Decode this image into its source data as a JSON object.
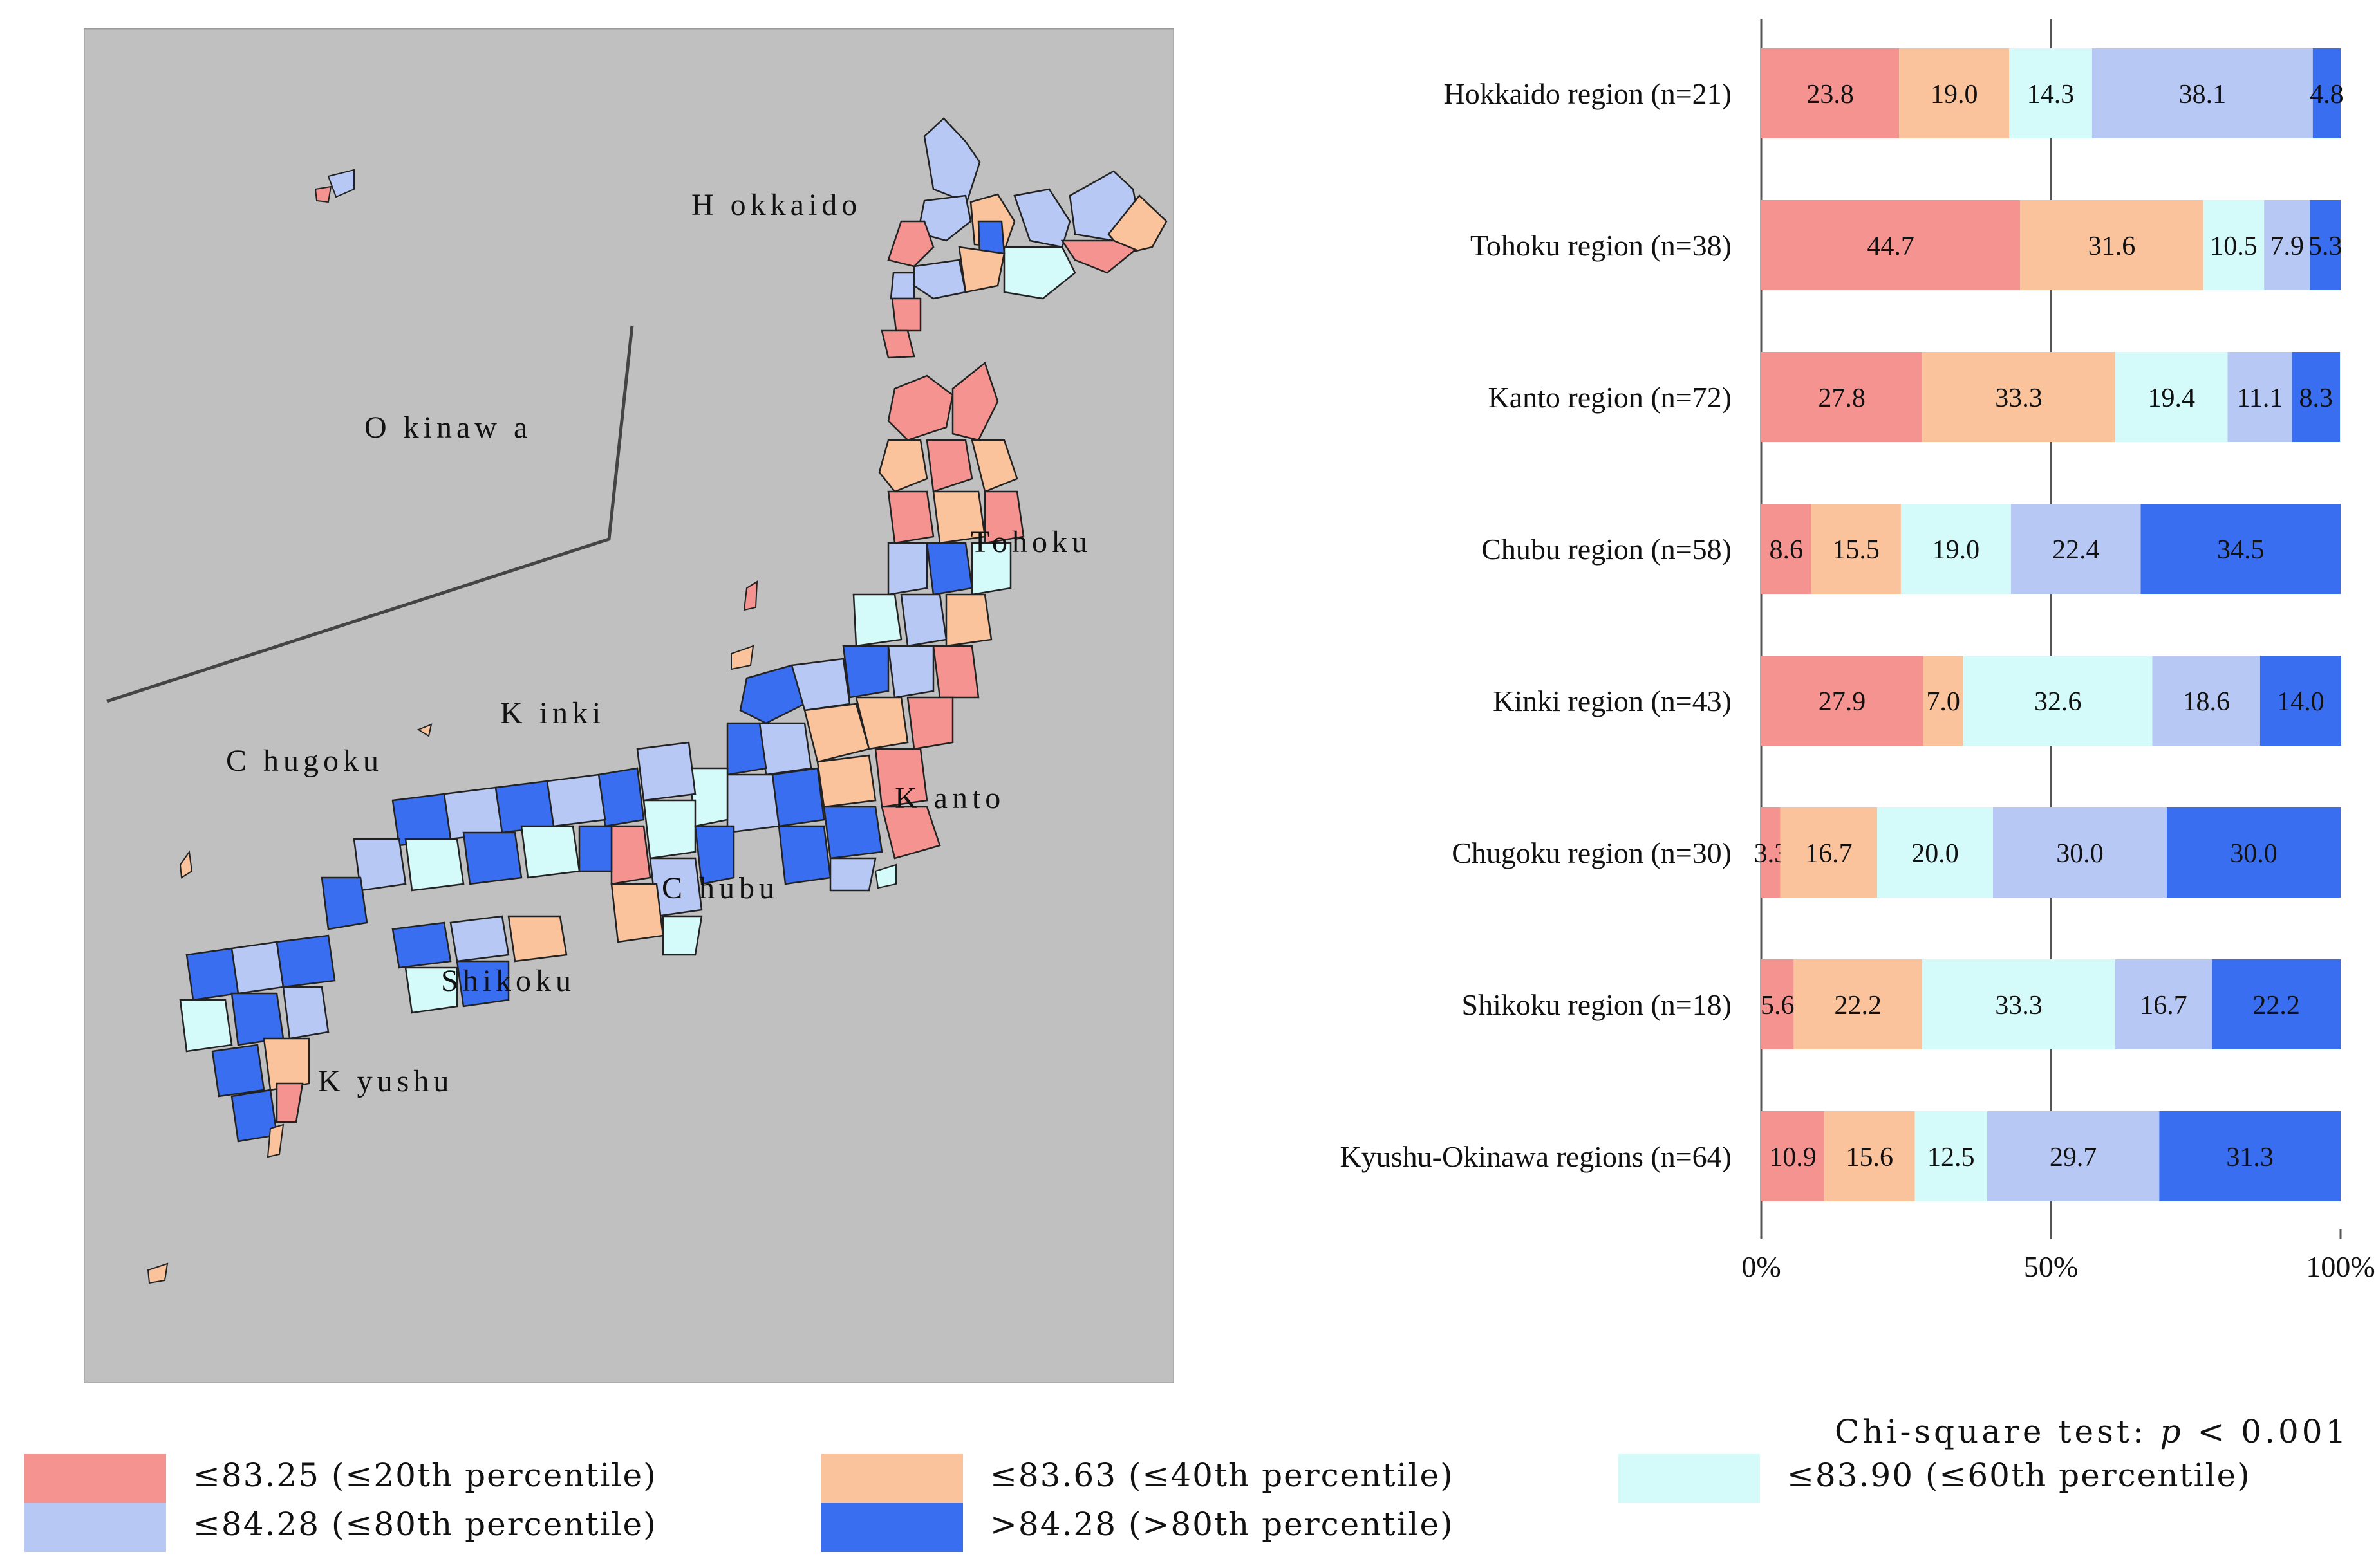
{
  "map": {
    "labels": {
      "hokkaido": "H okkaido",
      "okinawa": "O kinaw a",
      "tohoku": "Tohoku",
      "kinki": "K inki",
      "chugoku": "C hugoku",
      "kanto": "K anto",
      "chubu": "C hubu",
      "shikoku": "Shikoku",
      "kyushu": "K yushu"
    }
  },
  "chart_data": {
    "type": "bar",
    "orientation": "horizontal",
    "stacked": "percent",
    "categories": [
      "Hokkaido region (n=21)",
      "Tohoku region (n=38)",
      "Kanto region (n=72)",
      "Chubu region (n=58)",
      "Kinki region (n=43)",
      "Chugoku region (n=30)",
      "Shikoku region (n=18)",
      "Kyushu-Okinawa regions (n=64)"
    ],
    "series": [
      {
        "name": "≤83.25 (≤20th percentile)",
        "color": "#f4938f",
        "values": [
          23.8,
          44.7,
          27.8,
          8.6,
          27.9,
          3.3,
          5.6,
          10.9
        ]
      },
      {
        "name": "≤83.63 (≤40th percentile)",
        "color": "#fbc39c",
        "values": [
          19.0,
          31.6,
          33.3,
          15.5,
          7.0,
          16.7,
          22.2,
          15.6
        ]
      },
      {
        "name": "≤83.90 (≤60th percentile)",
        "color": "#d4fafa",
        "values": [
          14.3,
          10.5,
          19.4,
          19.0,
          32.6,
          20.0,
          33.3,
          12.5
        ]
      },
      {
        "name": "≤84.28 (≤80th percentile)",
        "color": "#b8c8f4",
        "values": [
          38.1,
          7.9,
          11.1,
          22.4,
          18.6,
          30.0,
          16.7,
          29.7
        ]
      },
      {
        "name": ">84.28 (>80th percentile)",
        "color": "#3a6ef0",
        "values": [
          4.8,
          5.3,
          8.3,
          34.5,
          14.0,
          30.0,
          22.2,
          31.3
        ]
      }
    ],
    "labels": [
      [
        "23.8",
        "19.0",
        "14.3",
        "38.1",
        "4.8"
      ],
      [
        "44.7",
        "31.6",
        "10.5",
        "7.9",
        "5.3"
      ],
      [
        "27.8",
        "33.3",
        "19.4",
        "11.1",
        "8.3"
      ],
      [
        "8.6",
        "15.5",
        "19.0",
        "22.4",
        "34.5"
      ],
      [
        "27.9",
        "7.0",
        "32.6",
        "18.6",
        "14.0"
      ],
      [
        "3.3",
        "16.7",
        "20.0",
        "30.0",
        "30.0"
      ],
      [
        "5.6",
        "22.2",
        "33.3",
        "16.7",
        "22.2"
      ],
      [
        "10.9",
        "15.6",
        "12.5",
        "29.7",
        "31.3"
      ]
    ],
    "x_ticks": [
      {
        "value": 0,
        "label": "0%"
      },
      {
        "value": 50,
        "label": "50%"
      },
      {
        "value": 100,
        "label": "100%"
      }
    ],
    "xlim": [
      0,
      100
    ],
    "grid": "vertical line at 50%",
    "legend": "bottom"
  },
  "note": {
    "prefix": "Chi-square test: ",
    "p_symbol": "p",
    "suffix": " < 0.001"
  },
  "legend_items": [
    {
      "label": "≤83.25 (≤20th percentile)",
      "color": "#f4938f"
    },
    {
      "label": "≤83.63 (≤40th percentile)",
      "color": "#fbc39c"
    },
    {
      "label": "≤83.90 (≤60th percentile)",
      "color": "#d4fafa"
    },
    {
      "label": "≤84.28 (≤80th percentile)",
      "color": "#b8c8f4"
    },
    {
      "label": ">84.28 (>80th percentile)",
      "color": "#3a6ef0"
    }
  ]
}
